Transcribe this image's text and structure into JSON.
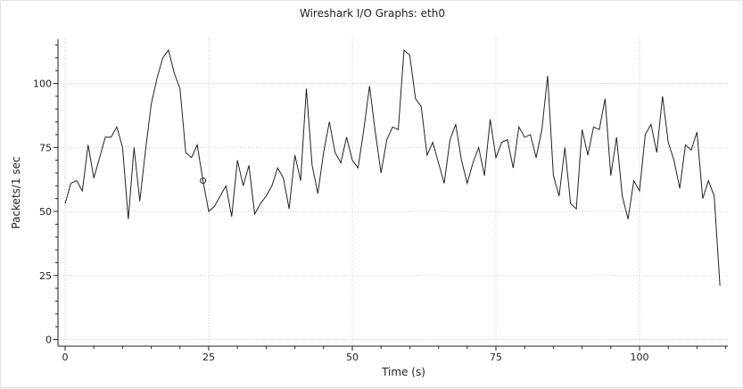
{
  "chart_data": {
    "type": "line",
    "title": "Wireshark I/O Graphs: eth0",
    "xlabel": "Time (s)",
    "ylabel": "Packets/1 sec",
    "xlim": [
      0,
      116
    ],
    "ylim": [
      -2,
      117
    ],
    "x_ticks": [
      0,
      25,
      50,
      75,
      100
    ],
    "y_ticks": [
      0,
      25,
      50,
      75,
      100
    ],
    "grid": true,
    "line_color": "#222222",
    "grid_color": "#c8c8c8",
    "series": [
      {
        "values": [
          53,
          61,
          62,
          58,
          76,
          63,
          71,
          79,
          79,
          83,
          75,
          47,
          75,
          54,
          74,
          92,
          102,
          110,
          113,
          104,
          98,
          73,
          71,
          76,
          62,
          50,
          52,
          56,
          60,
          48,
          70,
          60,
          68,
          49,
          53,
          56,
          60,
          67,
          63,
          51,
          72,
          62,
          98,
          68,
          57,
          73,
          85,
          73,
          69,
          79,
          70,
          67,
          82,
          99,
          81,
          65,
          78,
          83,
          82,
          113,
          111,
          94,
          91,
          72,
          77,
          69,
          61,
          78,
          84,
          70,
          61,
          69,
          75,
          64,
          86,
          71,
          77,
          78,
          67,
          83,
          79,
          80,
          71,
          82,
          103,
          64,
          56,
          75,
          53,
          51,
          82,
          72,
          83,
          82,
          94,
          64,
          79,
          56,
          47,
          62,
          58,
          80,
          84,
          73,
          95,
          77,
          70,
          59,
          76,
          74,
          81,
          55,
          62,
          56,
          21
        ]
      }
    ],
    "marker": {
      "x": 24,
      "y": 62
    }
  }
}
